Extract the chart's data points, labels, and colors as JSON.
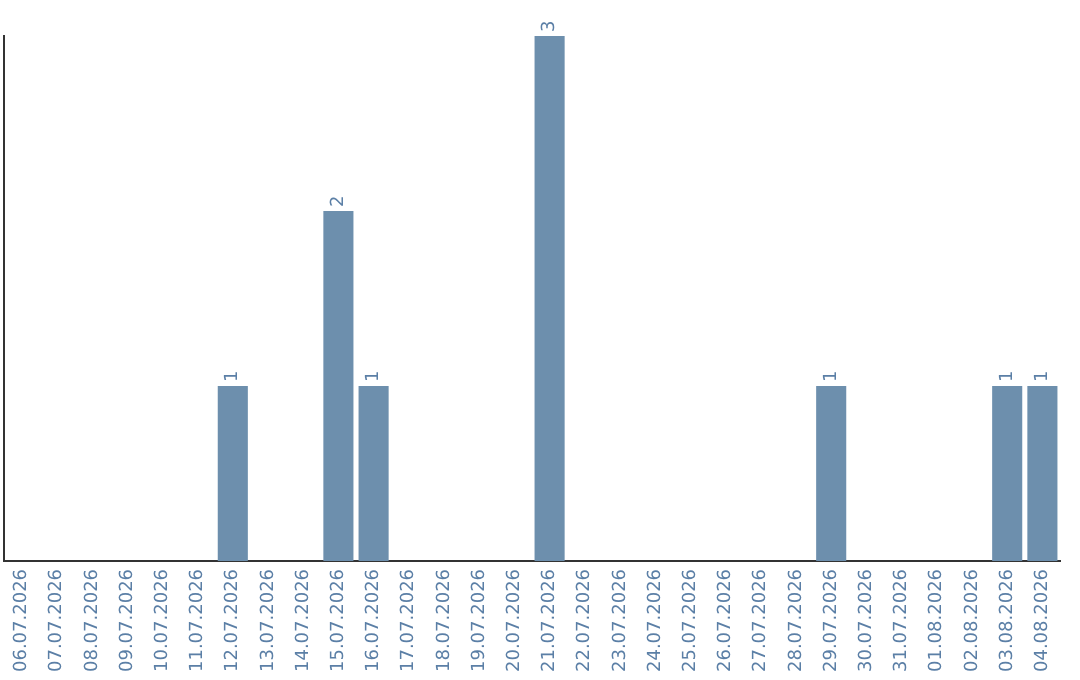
{
  "chart_data": {
    "type": "bar",
    "categories": [
      "06.07.2026",
      "07.07.2026",
      "08.07.2026",
      "09.07.2026",
      "10.07.2026",
      "11.07.2026",
      "12.07.2026",
      "13.07.2026",
      "14.07.2026",
      "15.07.2026",
      "16.07.2026",
      "17.07.2026",
      "18.07.2026",
      "19.07.2026",
      "20.07.2026",
      "21.07.2026",
      "22.07.2026",
      "23.07.2026",
      "24.07.2026",
      "25.07.2026",
      "26.07.2026",
      "27.07.2026",
      "28.07.2026",
      "29.07.2026",
      "30.07.2026",
      "31.07.2026",
      "01.08.2026",
      "02.08.2026",
      "03.08.2026",
      "04.08.2026"
    ],
    "values": [
      0,
      0,
      0,
      0,
      0,
      0,
      1,
      0,
      0,
      2,
      1,
      0,
      0,
      0,
      0,
      3,
      0,
      0,
      0,
      0,
      0,
      0,
      0,
      1,
      0,
      0,
      0,
      0,
      1,
      1
    ],
    "value_labels": [
      null,
      null,
      null,
      null,
      null,
      null,
      "1",
      null,
      null,
      "2",
      "1",
      null,
      null,
      null,
      null,
      "3",
      null,
      null,
      null,
      null,
      null,
      null,
      null,
      "1",
      null,
      null,
      null,
      null,
      "1",
      "1"
    ],
    "color": "#6d8fad",
    "tick_labels": "x",
    "grid": false,
    "legend": false
  }
}
